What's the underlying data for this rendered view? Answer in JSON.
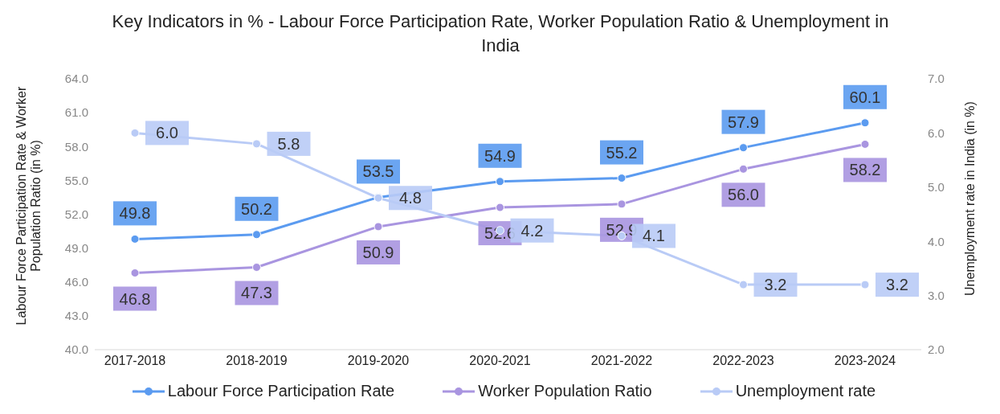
{
  "chart_data": {
    "type": "line",
    "title": "Key Indicators in % - Labour Force Participation Rate, Worker Population Ratio & Unemployment in India",
    "ylabel": "Labour Force Participation Rate & Worker Population Ratio (in %)",
    "y2label": "Unemployment rate in India (in %)",
    "categories": [
      "2017-2018",
      "2018-2019",
      "2019-2020",
      "2020-2021",
      "2021-2022",
      "2022-2023",
      "2023-2024"
    ],
    "series": [
      {
        "name": "Labour Force Participation Rate",
        "color": "#5b9bf0",
        "values": [
          49.8,
          50.2,
          53.5,
          54.9,
          55.2,
          57.9,
          60.1
        ],
        "value_labels": [
          "49.8",
          "50.2",
          "53.5",
          "54.9",
          "55.2",
          "57.9",
          "60.1"
        ]
      },
      {
        "name": "Worker Population Ratio",
        "color": "#a995e0",
        "values": [
          46.8,
          47.3,
          50.9,
          52.6,
          52.9,
          56.0,
          58.2
        ],
        "value_labels": [
          "46.8",
          "47.3",
          "50.9",
          "52.6",
          "52.9",
          "56.0",
          "58.2"
        ]
      },
      {
        "name": "Unemployment rate",
        "color": "#b9cbf6",
        "axis": "y2",
        "values": [
          6.0,
          5.8,
          4.8,
          4.2,
          4.1,
          3.2,
          3.2
        ],
        "value_labels": [
          "6.0",
          "5.8",
          "4.8",
          "4.2",
          "4.1",
          "3.2",
          "3.2"
        ]
      }
    ],
    "ylim": [
      40,
      64
    ],
    "yticks": [
      {
        "value": 40,
        "label": "40.0"
      },
      {
        "value": 43,
        "label": "43.0"
      },
      {
        "value": 46,
        "label": "46.0"
      },
      {
        "value": 49,
        "label": "49.0"
      },
      {
        "value": 52,
        "label": "52.0"
      },
      {
        "value": 55,
        "label": "55.0"
      },
      {
        "value": 58,
        "label": "58.0"
      },
      {
        "value": 61,
        "label": "61.0"
      },
      {
        "value": 64,
        "label": "64.0"
      }
    ],
    "y2lim": [
      2,
      7
    ],
    "y2ticks": [
      {
        "value": 2,
        "label": "2.0"
      },
      {
        "value": 3,
        "label": "3.0"
      },
      {
        "value": 4,
        "label": "4.0"
      },
      {
        "value": 5,
        "label": "5.0"
      },
      {
        "value": 6,
        "label": "6.0"
      },
      {
        "value": 7,
        "label": "7.0"
      }
    ],
    "data_labels": true,
    "grid": false,
    "legend": "bottom",
    "marker": "circle",
    "line_style": "solid"
  }
}
